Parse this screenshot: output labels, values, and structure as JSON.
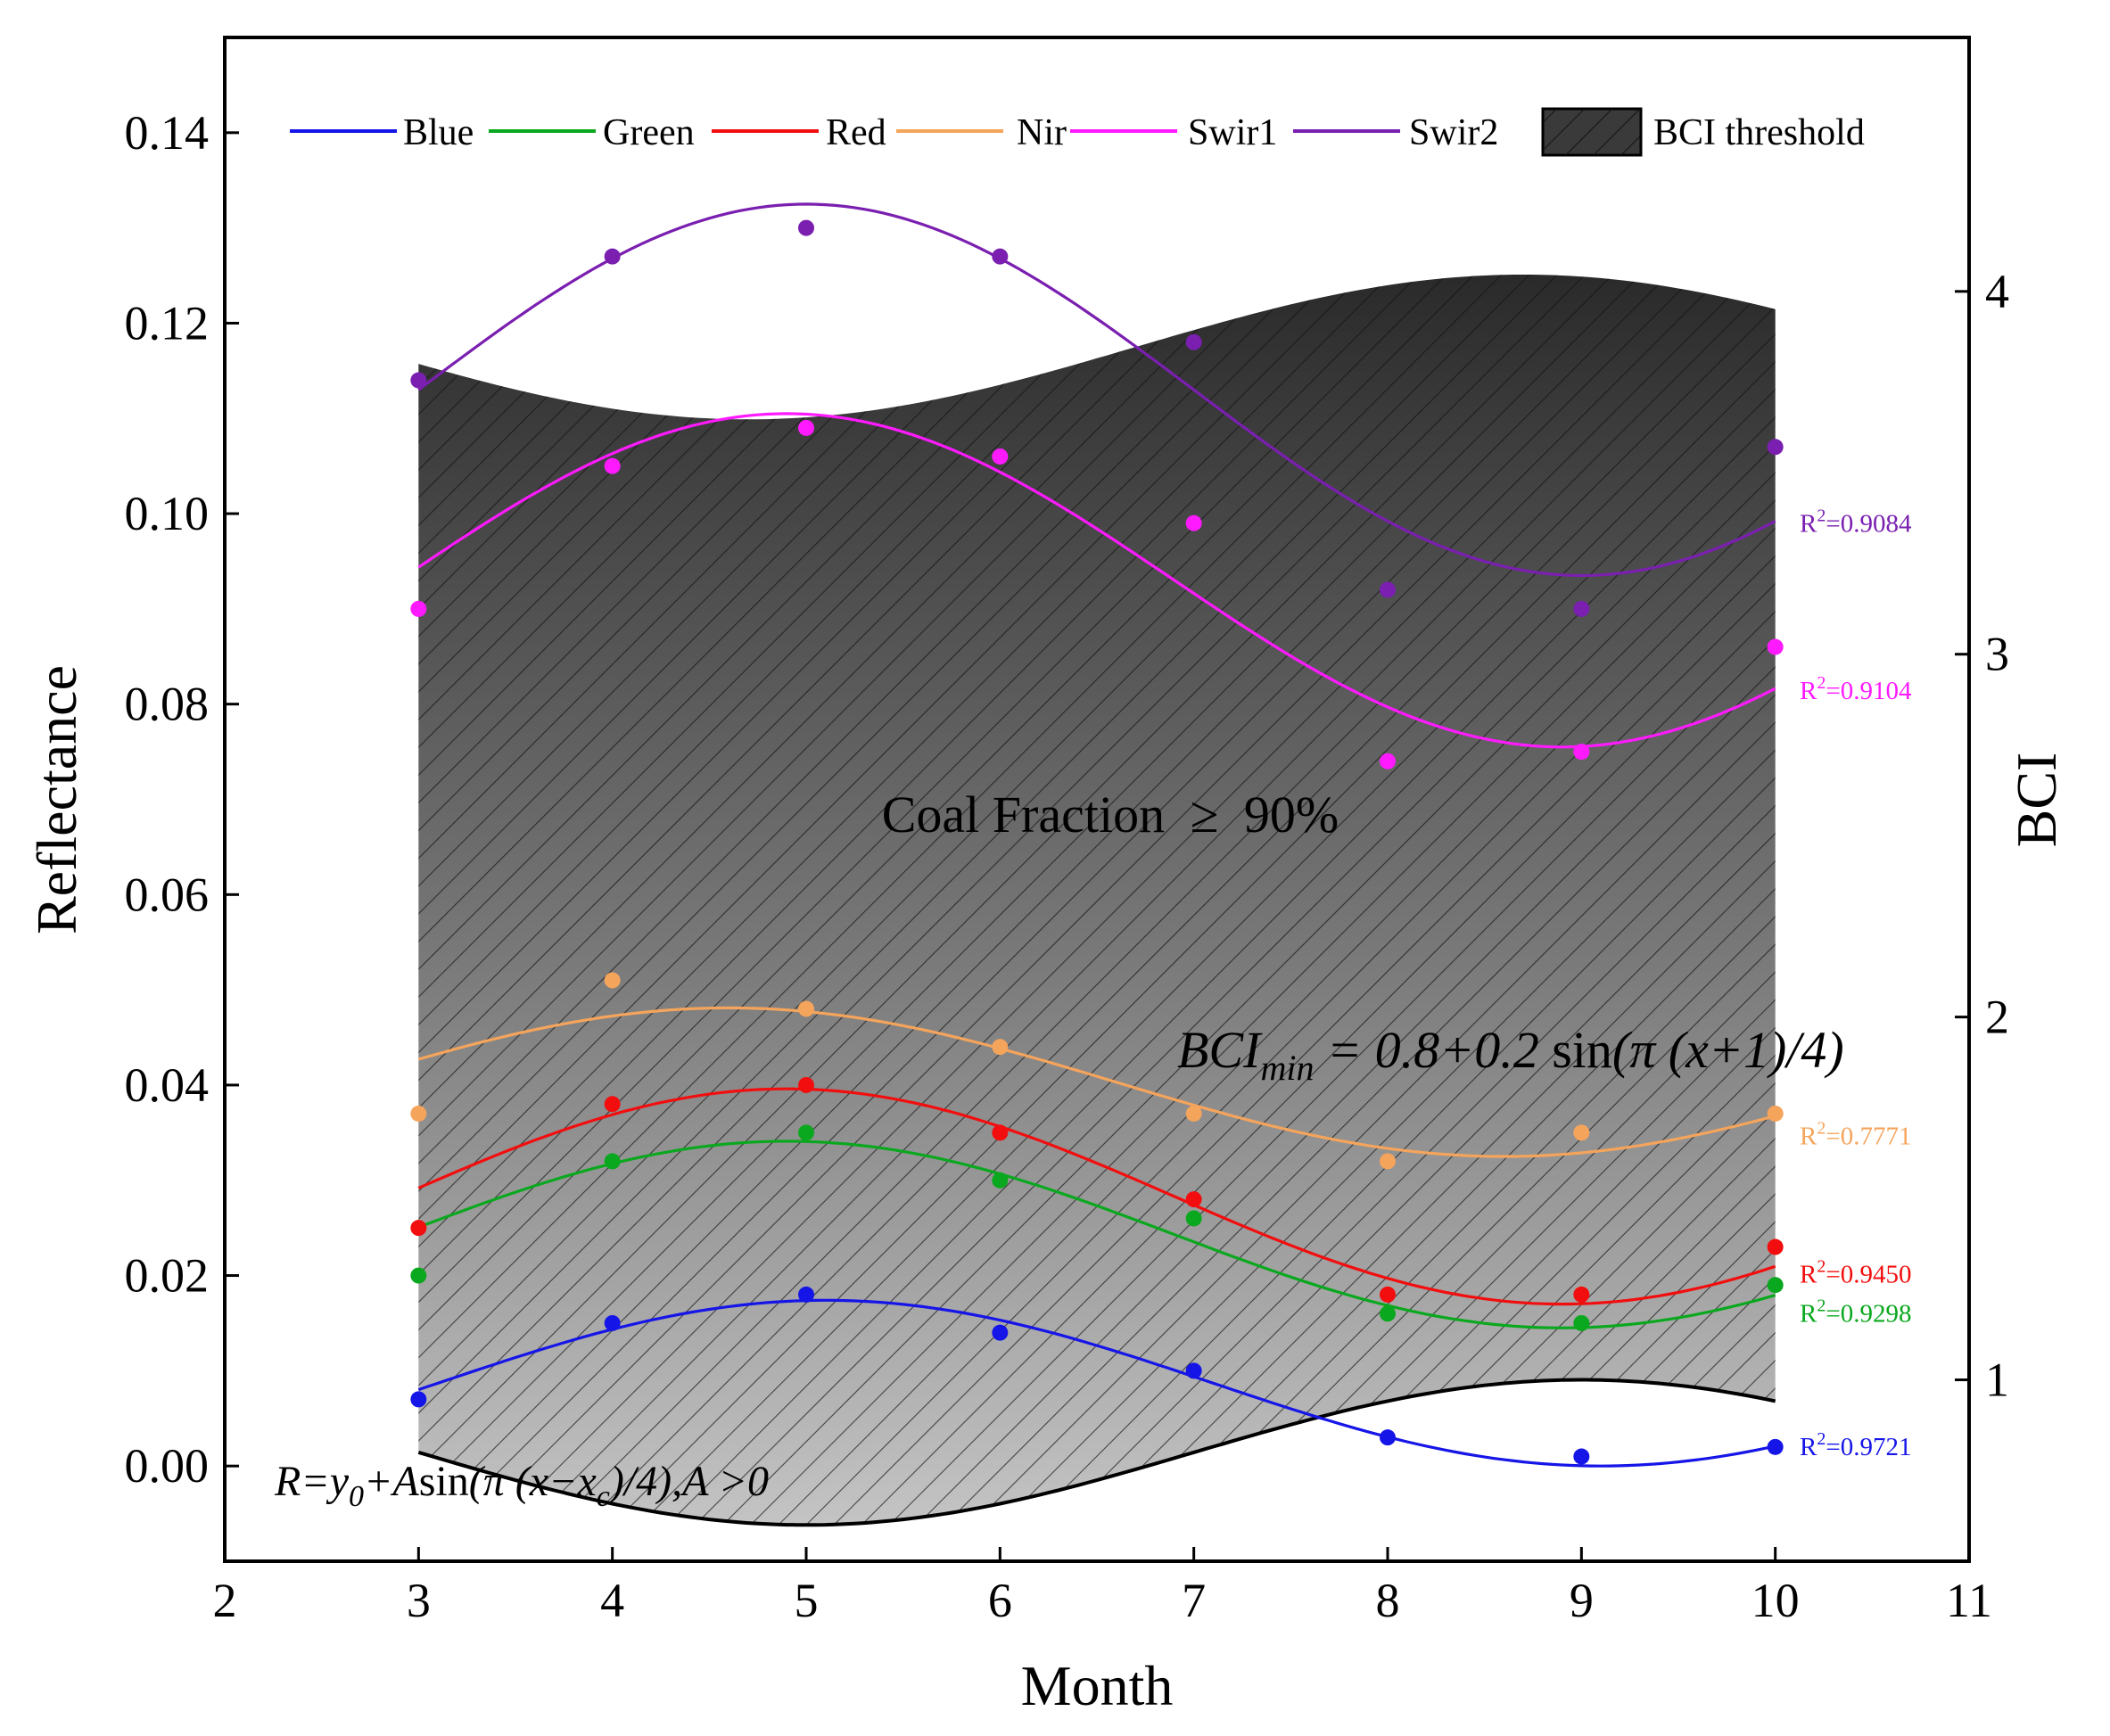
{
  "chart_data": {
    "type": "scatter",
    "xlabel": "Month",
    "ylabel": "Reflectance",
    "y2label": "BCI",
    "xlim": [
      2,
      11
    ],
    "ylim": [
      -0.01,
      0.15
    ],
    "y2lim": [
      0.5,
      4.7
    ],
    "xticks": [
      "2",
      "3",
      "4",
      "5",
      "6",
      "7",
      "8",
      "9",
      "10",
      "11"
    ],
    "yticks": [
      "0.00",
      "0.02",
      "0.04",
      "0.06",
      "0.08",
      "0.10",
      "0.12",
      "0.14"
    ],
    "y2ticks": [
      "1",
      "2",
      "3",
      "4"
    ],
    "grid": false,
    "legend_position": "top",
    "x": [
      3,
      4,
      5,
      6,
      7,
      8,
      9,
      10
    ],
    "series": [
      {
        "name": "Blue",
        "color": "#1515e8",
        "values": [
          0.007,
          0.015,
          0.018,
          0.014,
          0.01,
          0.003,
          0.001,
          0.002
        ],
        "fit": {
          "y0": 0.0087,
          "A": 0.0087,
          "xc": 3.1
        },
        "r2_label": "=0.9721"
      },
      {
        "name": "Green",
        "color": "#0aa81e",
        "values": [
          0.02,
          0.032,
          0.035,
          0.03,
          0.026,
          0.016,
          0.015,
          0.019
        ],
        "fit": {
          "y0": 0.0243,
          "A": 0.0098,
          "xc": 2.9
        },
        "r2_label": "=0.9298"
      },
      {
        "name": "Red",
        "color": "#f20e0e",
        "values": [
          0.025,
          0.038,
          0.04,
          0.035,
          0.028,
          0.018,
          0.018,
          0.023
        ],
        "fit": {
          "y0": 0.0283,
          "A": 0.0113,
          "xc": 2.9
        },
        "r2_label": "=0.9450"
      },
      {
        "name": "Nir",
        "color": "#f5a45c",
        "values": [
          0.037,
          0.051,
          0.048,
          0.044,
          0.037,
          0.032,
          0.035,
          0.037
        ],
        "fit": {
          "y0": 0.0403,
          "A": 0.0078,
          "xc": 2.6
        },
        "r2_label": "=0.7771"
      },
      {
        "name": "Swir1",
        "color": "#ff1aff",
        "values": [
          0.09,
          0.105,
          0.109,
          0.106,
          0.099,
          0.074,
          0.075,
          0.086
        ],
        "fit": {
          "y0": 0.093,
          "A": 0.0175,
          "xc": 2.9
        },
        "r2_label": "=0.9104"
      },
      {
        "name": "Swir2",
        "color": "#7a1fb0",
        "values": [
          0.114,
          0.127,
          0.13,
          0.127,
          0.118,
          0.092,
          0.09,
          0.107
        ],
        "fit": {
          "y0": 0.113,
          "A": 0.0195,
          "xc": 3.0
        },
        "r2_label": "=0.9084"
      }
    ],
    "bci_threshold": {
      "name": "BCI threshold",
      "lower_formula": {
        "y0": 0.8,
        "A": 0.2,
        "shift": 1
      },
      "upper": {
        "y0": 0.1175,
        "A": 0.0076,
        "xc": 6.7
      },
      "x_range": [
        3,
        10
      ]
    },
    "annotations": {
      "region_prefix": "Coal Fraction",
      "region_symbol": "≥",
      "region_value": "90%",
      "bci_lhs": "BCI",
      "bci_sub": "min",
      "bci_eq": " = 0.8+0.2 ",
      "bci_sin": "sin",
      "bci_arg": "(π (x+1)/4)",
      "model_r": "R=y",
      "model_r_sub": "0",
      "model_mid": "+A",
      "model_sin": "sin",
      "model_arg": "(π (x−x",
      "model_arg_sub": "c",
      "model_end": ")/4),A >0",
      "r2_prefix": "R",
      "r2_sup": "2"
    }
  }
}
